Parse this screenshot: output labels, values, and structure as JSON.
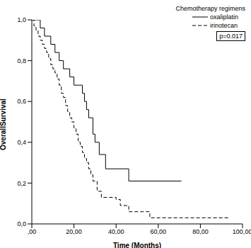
{
  "chart_data": {
    "type": "line",
    "x_label": "Time (Months)",
    "y_label": "OverallSurvival",
    "legend_title": "Chemotherapy regimens",
    "legend": "upper right",
    "annotations": [
      "p=0.017"
    ],
    "xlim": [
      0,
      100
    ],
    "xticks": [
      {
        "value": 0,
        "label": ",00"
      },
      {
        "value": 20,
        "label": "20,00"
      },
      {
        "value": 40,
        "label": "40,00"
      },
      {
        "value": 60,
        "label": "60,00"
      },
      {
        "value": 80,
        "label": "80,00"
      },
      {
        "value": 100,
        "label": "100,00"
      }
    ],
    "ylim": [
      0,
      1
    ],
    "yticks": [
      {
        "value": 0,
        "label": "0,0"
      },
      {
        "value": 0.2,
        "label": "0,2"
      },
      {
        "value": 0.4,
        "label": "0,4"
      },
      {
        "value": 0.6,
        "label": "0,6"
      },
      {
        "value": 0.8,
        "label": "0,8"
      },
      {
        "value": 1,
        "label": "1,0"
      }
    ],
    "grid": false,
    "series": [
      {
        "name": "oxaliplatin",
        "color": "#000000",
        "line_style": "solid",
        "x": [
          0,
          4,
          6,
          9,
          11,
          13,
          15,
          18,
          20,
          24,
          25,
          26,
          27,
          29,
          30,
          32,
          35,
          46,
          71
        ],
        "values": [
          1,
          0.96,
          0.92,
          0.88,
          0.84,
          0.8,
          0.76,
          0.72,
          0.68,
          0.64,
          0.6,
          0.56,
          0.52,
          0.44,
          0.4,
          0.34,
          0.27,
          0.21,
          0.21
        ]
      },
      {
        "name": "irinotecan",
        "color": "#000000",
        "line_style": "dashed",
        "x": [
          0,
          1,
          2,
          3,
          4,
          5,
          6,
          7,
          8,
          9,
          10,
          11,
          12,
          13,
          14,
          15,
          16,
          17,
          18,
          19,
          20,
          21,
          22,
          23,
          24,
          25,
          26,
          27,
          28,
          29,
          31,
          33,
          40,
          42,
          46,
          56,
          94
        ],
        "values": [
          1,
          0.97,
          0.95,
          0.92,
          0.9,
          0.88,
          0.86,
          0.84,
          0.81,
          0.78,
          0.76,
          0.74,
          0.71,
          0.68,
          0.64,
          0.62,
          0.58,
          0.55,
          0.52,
          0.5,
          0.47,
          0.44,
          0.4,
          0.38,
          0.35,
          0.32,
          0.3,
          0.27,
          0.24,
          0.21,
          0.16,
          0.13,
          0.12,
          0.09,
          0.06,
          0.03,
          0.03
        ]
      }
    ]
  }
}
